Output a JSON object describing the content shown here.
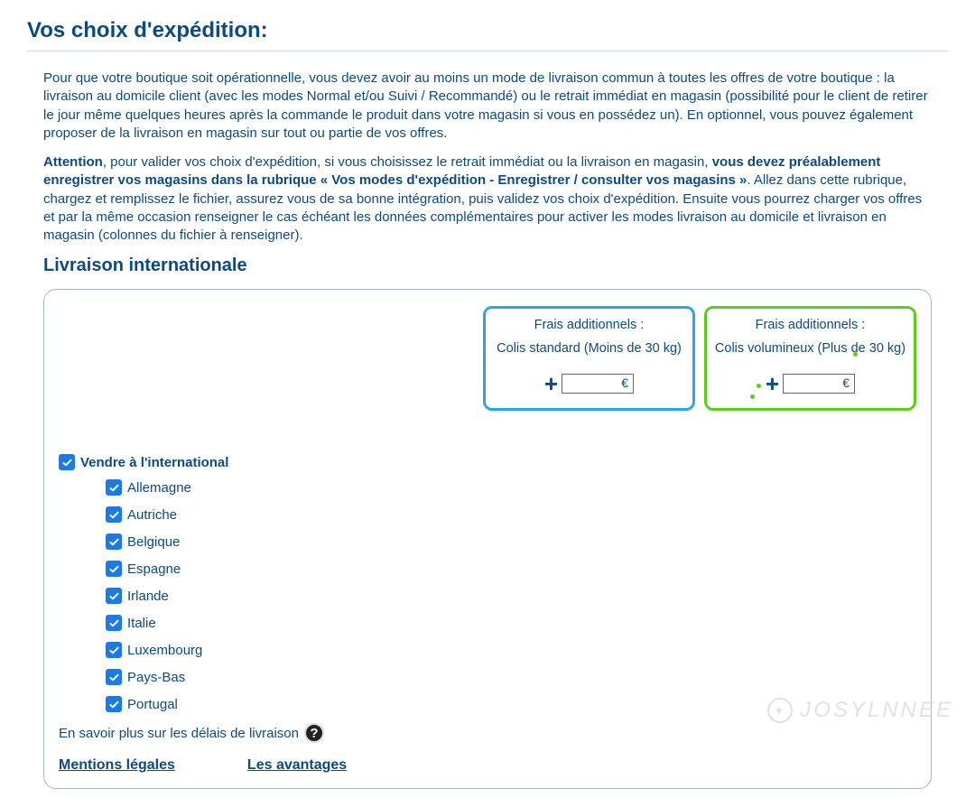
{
  "page": {
    "title": "Vos choix d'expédition:"
  },
  "intro": {
    "p1": "Pour que votre boutique soit opérationnelle, vous devez avoir au moins un mode de livraison commun à toutes les offres de votre boutique : la livraison au domicile client (avec les modes Normal et/ou Suivi / Recommandé) ou le retrait immédiat en magasin (possibilité pour le client de retirer le jour même quelques heures après la commande le produit dans votre magasin si vous en possédez un). En optionnel, vous pouvez également proposer de la livraison en magasin sur tout ou partie de vos offres.",
    "p2_pre": "Attention",
    "p2_mid": ", pour valider vos choix d'expédition, si vous choisissez le retrait immédiat ou la livraison en magasin, ",
    "p2_bold": "vous devez préalablement enregistrer vos magasins dans la rubrique « Vos modes d'expédition - Enregistrer / consulter vos magasins »",
    "p2_post": ". Allez dans cette rubrique, chargez et remplissez le fichier, assurez vous de sa bonne intégration, puis validez vos choix d'expédition. Ensuite vous pourrez charger vos offres et par la même occasion renseigner le cas échéant les données complémentaires pour activer les modes livraison au domicile et livraison en magasin (colonnes du fichier à renseigner)."
  },
  "section": {
    "title": "Livraison internationale"
  },
  "fees": {
    "label": "Frais additionnels :",
    "standard": "Colis standard (Moins de 30 kg)",
    "large": "Colis volumineux (Plus de 30 kg)",
    "currency": "€",
    "plus": "+",
    "value_standard": "",
    "value_large": "",
    "box_colors": {
      "standard": "#2aa6e8",
      "large": "#5ecc1c"
    }
  },
  "master": {
    "label": "Vendre à l'international",
    "checked": true
  },
  "countries": [
    {
      "label": "Allemagne",
      "checked": true
    },
    {
      "label": "Autriche",
      "checked": true
    },
    {
      "label": "Belgique",
      "checked": true
    },
    {
      "label": "Espagne",
      "checked": true
    },
    {
      "label": "Irlande",
      "checked": true
    },
    {
      "label": "Italie",
      "checked": true
    },
    {
      "label": "Luxembourg",
      "checked": true
    },
    {
      "label": "Pays-Bas",
      "checked": true
    },
    {
      "label": "Portugal",
      "checked": true
    }
  ],
  "delay": {
    "text": "En savoir plus sur les délais de livraison",
    "help_glyph": "?"
  },
  "links": {
    "legal": "Mentions légales",
    "advantages": "Les avantages"
  },
  "watermark": {
    "text": "JOSYLNNEE"
  },
  "colors": {
    "primary_text": "#0b4a82",
    "checkbox_bg": "#1a7be6",
    "panel_border": "#9db8d0"
  }
}
